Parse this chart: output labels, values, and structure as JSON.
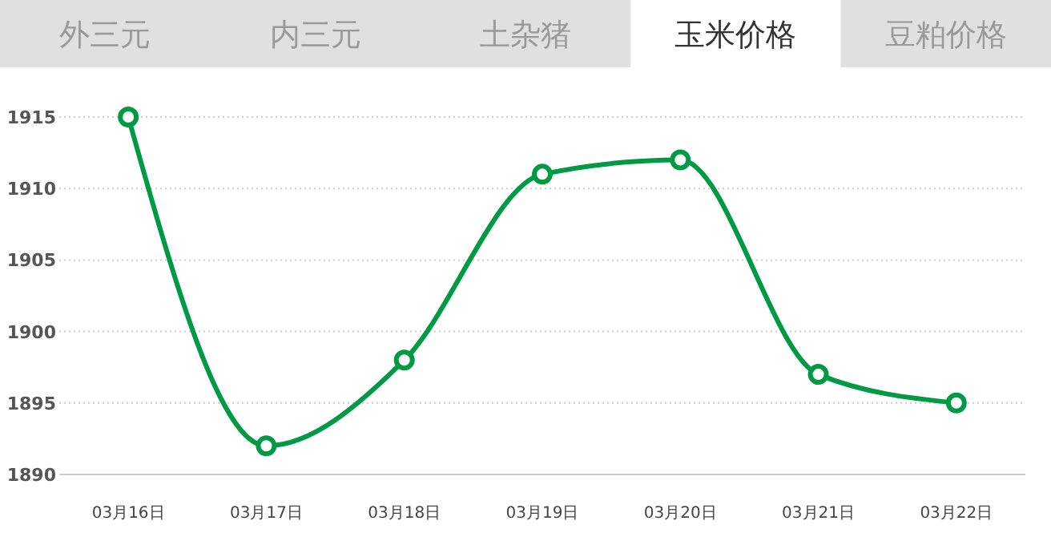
{
  "chart_data": {
    "type": "line",
    "annotations": [
      "外三元",
      "内三元",
      "土杂猪",
      "玉米价格",
      "豆粕价格"
    ],
    "categories": [
      "03月16日",
      "03月17日",
      "03月18日",
      "03月19日",
      "03月20日",
      "03月21日",
      "03月22日"
    ],
    "series": [
      {
        "color": "#009a44",
        "values": [
          1915,
          1892,
          1898,
          1911,
          1912,
          1897,
          1895
        ]
      }
    ],
    "ylim": [
      1890,
      1915
    ],
    "yticks": [
      1890,
      1895,
      1900,
      1905,
      1910,
      1915
    ],
    "grid": "y",
    "marker": "circle",
    "line_style": "solid"
  }
}
